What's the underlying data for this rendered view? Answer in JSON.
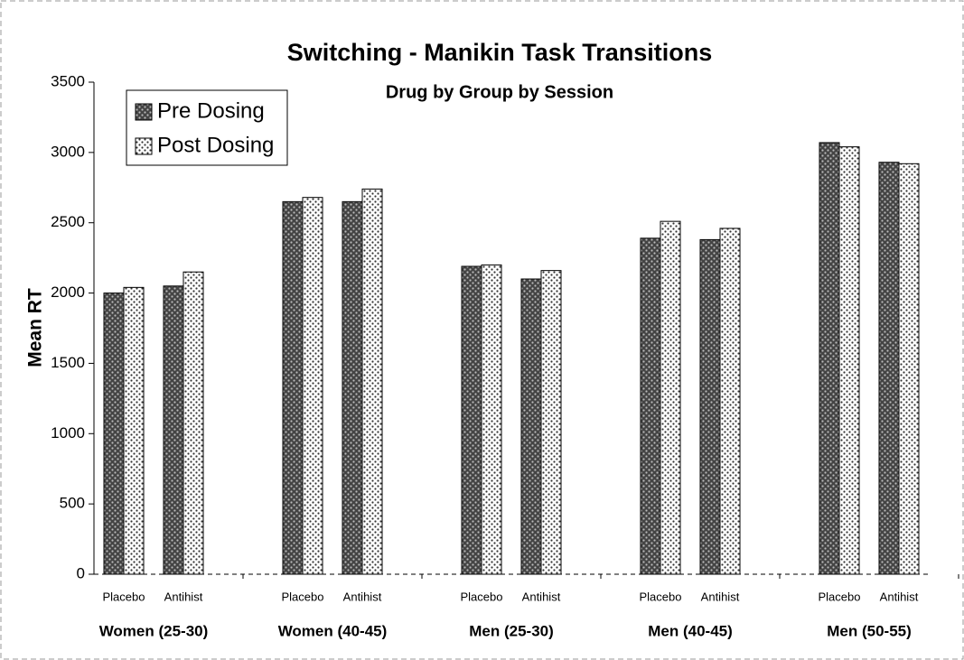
{
  "chart_data": {
    "type": "bar",
    "title": "Switching - Manikin Task Transitions",
    "subtitle": "Drug by Group by Session",
    "y_label": "Mean RT",
    "categories": [
      "Placebo",
      "Antihist",
      "Placebo",
      "Antihist",
      "Placebo",
      "Antihist",
      "Placebo",
      "Antihist",
      "Placebo",
      "Antihist"
    ],
    "groups": [
      "Women (25-30)",
      "Women (40-45)",
      "Men (25-30)",
      "Men (40-45)",
      "Men (50-55)"
    ],
    "series": [
      {
        "name": "Pre Dosing",
        "color": "#444444",
        "values": [
          2000,
          2050,
          2650,
          2650,
          2190,
          2100,
          2390,
          2380,
          3070,
          2930
        ]
      },
      {
        "name": "Post Dosing",
        "color": "#ffffff",
        "values": [
          2040,
          2150,
          2680,
          2740,
          2200,
          2160,
          2510,
          2460,
          3040,
          2920
        ]
      }
    ],
    "ylim": [
      0,
      3500
    ],
    "yticks": [
      0,
      500,
      1000,
      1500,
      2000,
      2500,
      3000,
      3500
    ],
    "legend": "top-left"
  }
}
